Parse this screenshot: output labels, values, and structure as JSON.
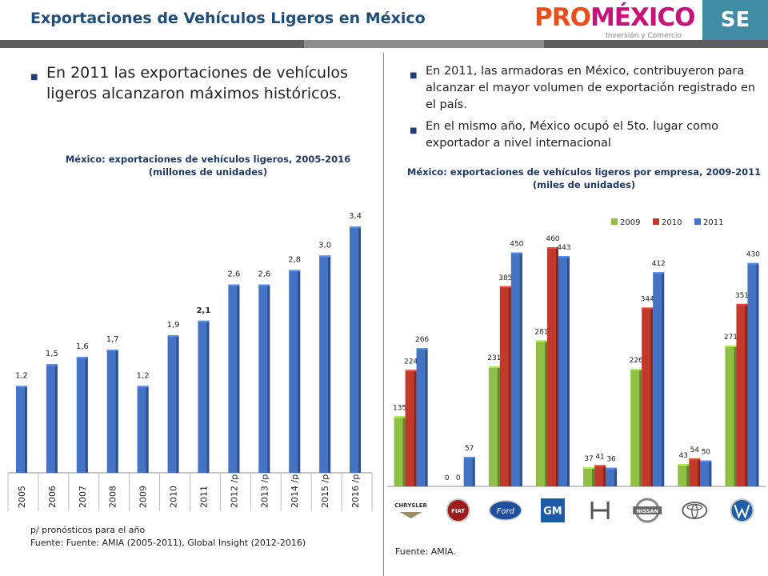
{
  "header": {
    "title": "Exportaciones  de Vehículos Ligeros en México",
    "logo_pro": "PRO",
    "logo_mexico": "MÉXICO",
    "logo_tagline": "Inversión y Comercio",
    "badge": "SE"
  },
  "colors": {
    "title": "#1f4e79",
    "strip": [
      "#5f5f5f",
      "#8c8c8c",
      "#5f5f5f"
    ],
    "bar_blue": "#4472c4",
    "green_2009": "#8fbf45",
    "red_2010": "#c0392b",
    "blue_2011": "#4472c4"
  },
  "left": {
    "bullet": "En 2011 las exportaciones de vehículos ligeros alcanzaron máximos históricos.",
    "footnote_1": "p/ pronósticos para el año",
    "footnote_2": "Fuente: Fuente: AMIA (2005-2011), Global Insight (2012-2016)"
  },
  "right": {
    "bullets": [
      "En 2011, las armadoras en México, contribuyeron para alcanzar el mayor volumen de exportación registrado en el país.",
      "En el mismo año, México ocupó el 5to.  lugar como exportador a nivel internacional"
    ],
    "source": "Fuente: AMIA."
  },
  "chart_data": [
    {
      "type": "bar",
      "title": "México: exportaciones de vehículos ligeros, 2005-2016",
      "subtitle": "(millones de unidades)",
      "categories": [
        "2005",
        "2006",
        "2007",
        "2008",
        "2009",
        "2010",
        "2011",
        "2012 /p",
        "2013 /p",
        "2014 /p",
        "2015 /p",
        "2016 /p"
      ],
      "values": [
        1.2,
        1.5,
        1.6,
        1.7,
        1.2,
        1.9,
        2.1,
        2.6,
        2.6,
        2.8,
        3.0,
        3.4
      ],
      "value_labels": [
        "1,2",
        "1,5",
        "1,6",
        "1,7",
        "1,2",
        "1,9",
        "2,1",
        "2,6",
        "2,6",
        "2,8",
        "3,0",
        "3,4"
      ],
      "highlight_label_index": 6,
      "ylim": [
        0,
        3.6
      ],
      "grid": false,
      "legend": "none"
    },
    {
      "type": "bar",
      "title": "México: exportaciones de vehículos ligeros por empresa, 2009-2011",
      "subtitle": "(miles de unidades)",
      "categories": [
        "Chrysler",
        "Fiat",
        "Ford",
        "GM",
        "Honda",
        "Nissan",
        "Toyota",
        "Volkswagen"
      ],
      "series": [
        {
          "name": "2009",
          "values": [
            135,
            0,
            231,
            281,
            37,
            226,
            43,
            271
          ]
        },
        {
          "name": "2010",
          "values": [
            224,
            0,
            385,
            460,
            41,
            344,
            54,
            351
          ]
        },
        {
          "name": "2011",
          "values": [
            266,
            57,
            450,
            443,
            36,
            412,
            50,
            430
          ]
        }
      ],
      "category_logos": [
        {
          "icon": "chrysler-logo",
          "text": "CHRYSLER"
        },
        {
          "icon": "fiat-logo",
          "text": "FIAT"
        },
        {
          "icon": "ford-logo",
          "text": "Ford"
        },
        {
          "icon": "gm-logo",
          "text": "GM"
        },
        {
          "icon": "honda-logo",
          "text": ""
        },
        {
          "icon": "nissan-logo",
          "text": "NISSAN"
        },
        {
          "icon": "toyota-logo",
          "text": ""
        },
        {
          "icon": "volkswagen-logo",
          "text": ""
        }
      ],
      "ylim": [
        0,
        480
      ],
      "grid": false,
      "legend": "top-right"
    }
  ]
}
